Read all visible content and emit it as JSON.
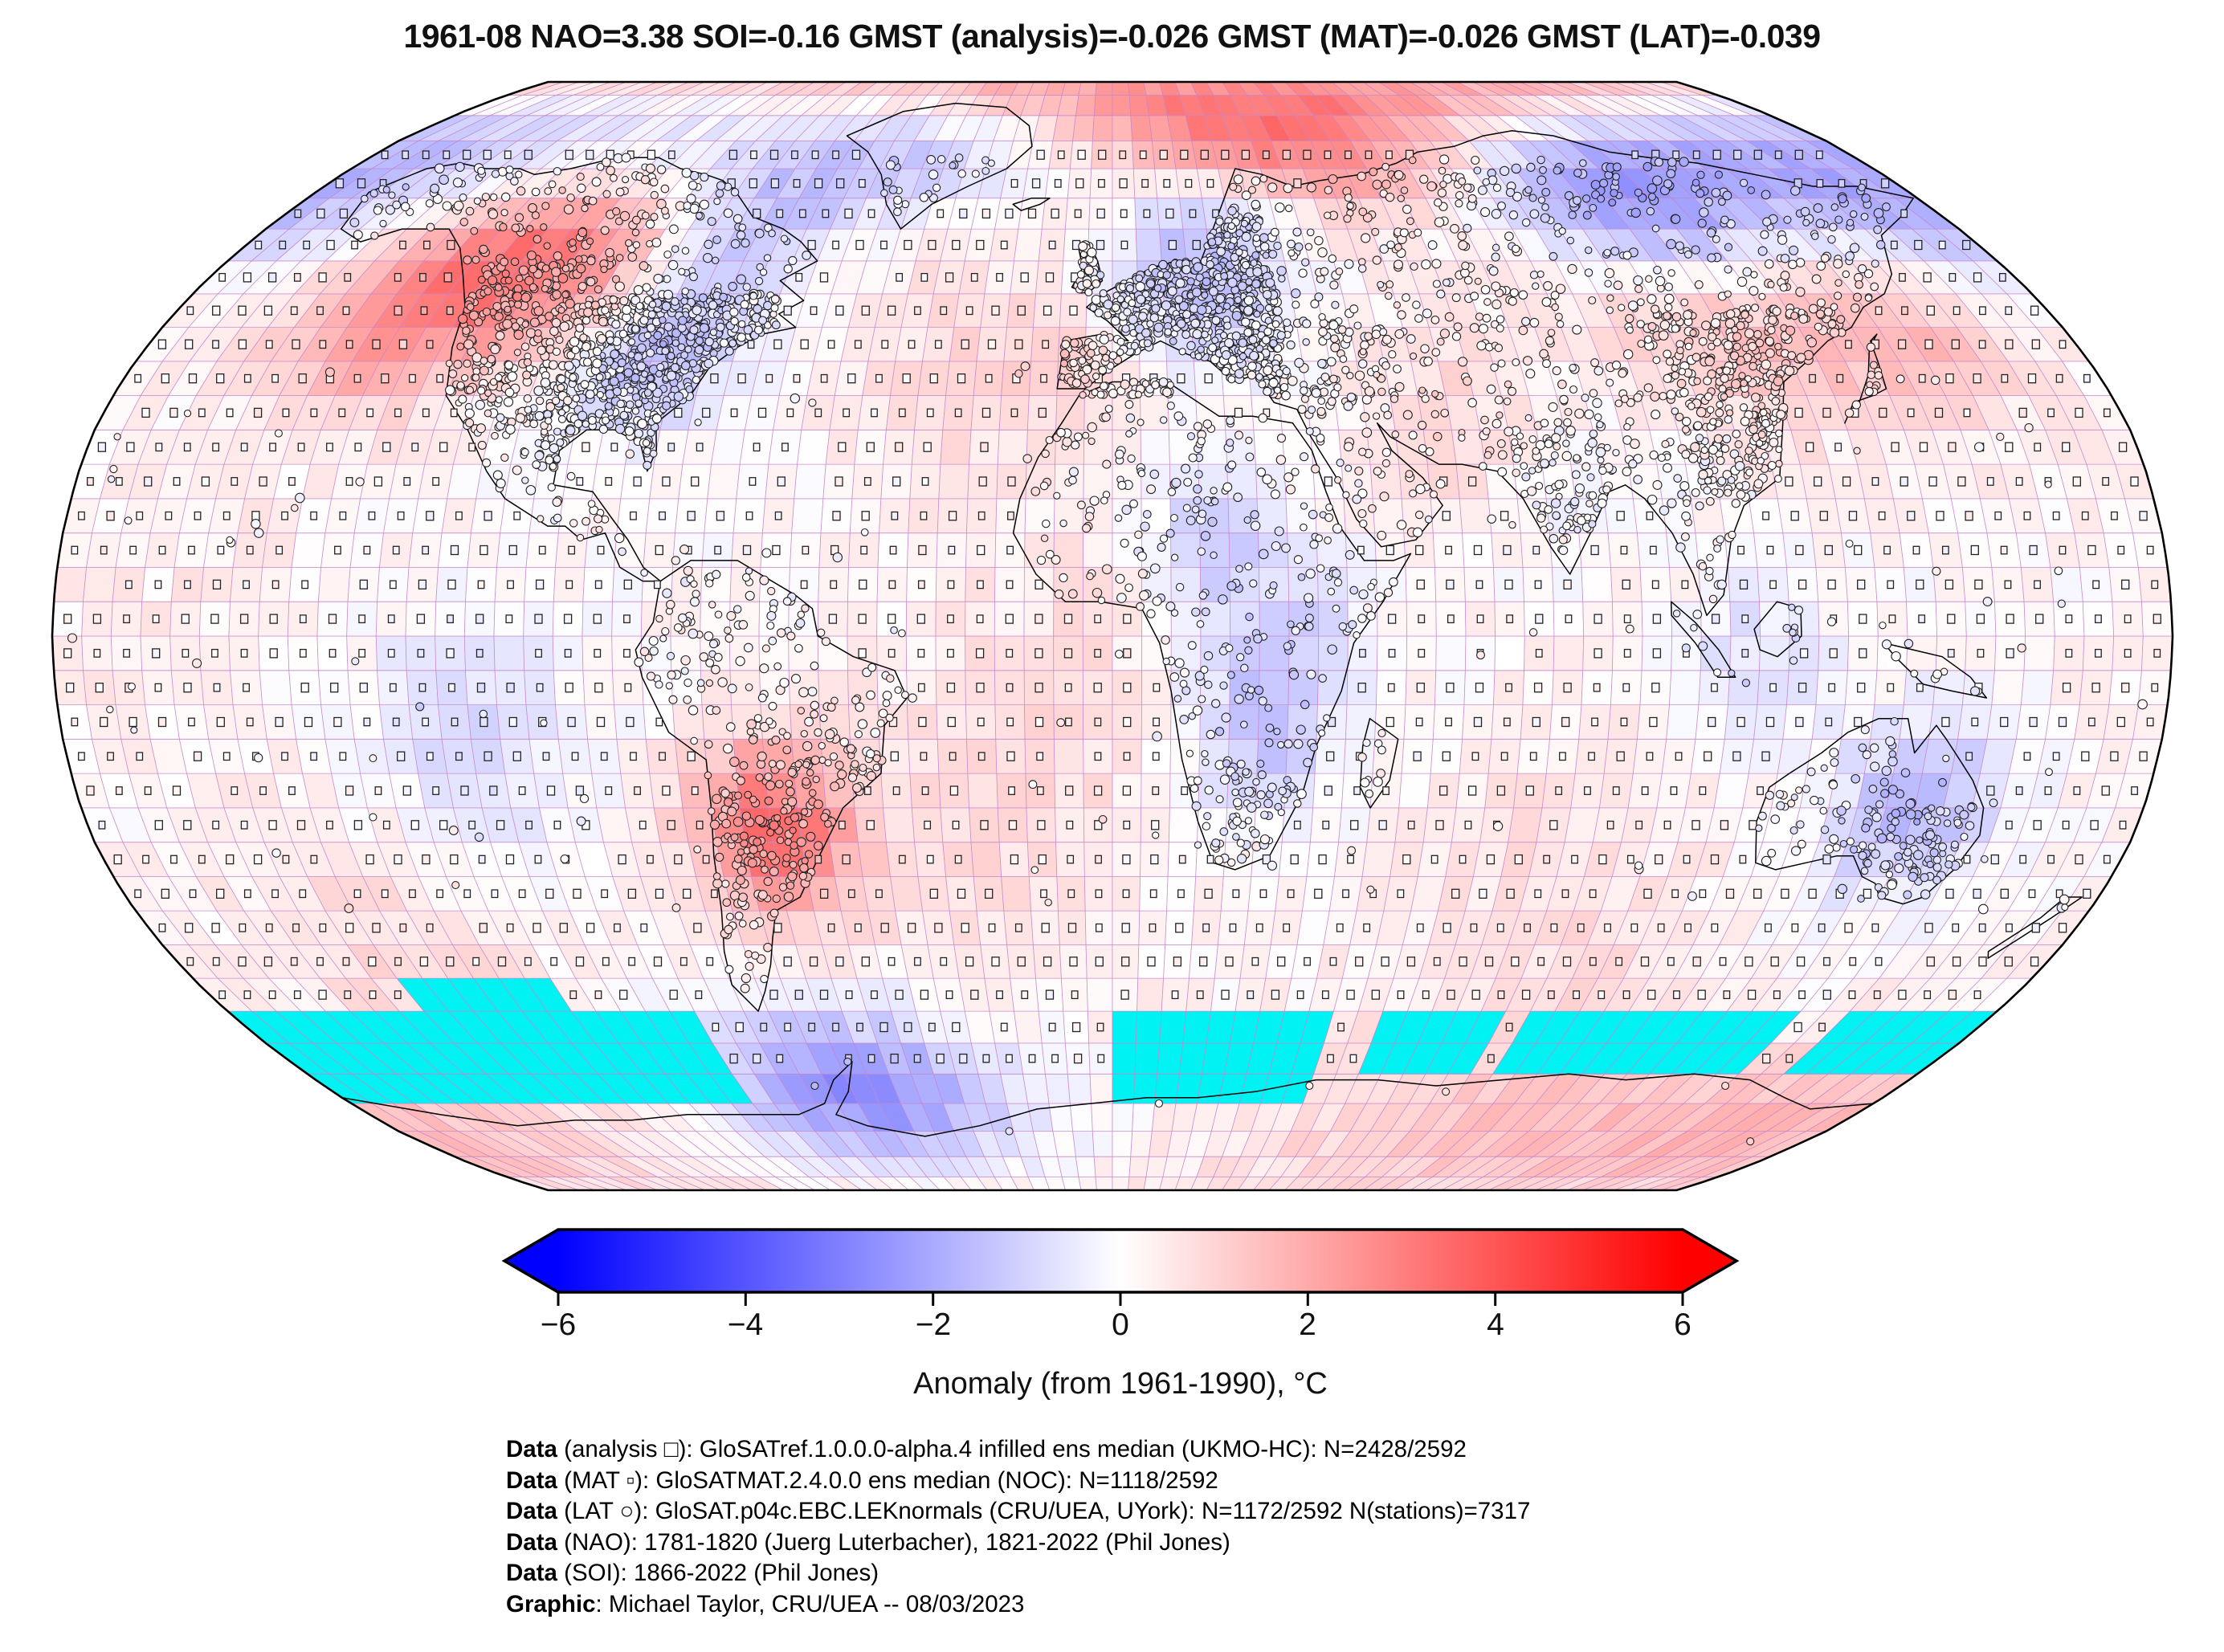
{
  "title": "1961-08 NAO=3.38 SOI=-0.16 GMST (analysis)=-0.026 GMST (MAT)=-0.026 GMST (LAT)=-0.039",
  "header_values": {
    "period": "1961-08",
    "NAO": 3.38,
    "SOI": -0.16,
    "GMST_analysis": -0.026,
    "GMST_MAT": -0.026,
    "GMST_LAT": -0.039
  },
  "colorbar": {
    "label": "Anomaly (from 1961-1990), °C",
    "ticks": [
      "−6",
      "−4",
      "−2",
      "0",
      "2",
      "4",
      "6"
    ],
    "min": -6,
    "max": 6,
    "colors": {
      "negative_end": "#0000ff",
      "zero": "#ffffff",
      "positive_end": "#ff0000"
    }
  },
  "footer": {
    "lines": [
      {
        "prefix": "Data",
        "text": " (analysis □): GloSATref.1.0.0.0-alpha.4 infilled ens median (UKMO-HC): N=2428/2592"
      },
      {
        "prefix": "Data",
        "text": " (MAT ▫): GloSATMAT.2.4.0.0 ens median (NOC): N=1118/2592"
      },
      {
        "prefix": "Data",
        "text": " (LAT ○): GloSAT.p04c.EBC.LEKnormals (CRU/UEA, UYork): N=1172/2592 N(stations)=7317"
      },
      {
        "prefix": "Data",
        "text": " (NAO): 1781-1820 (Juerg Luterbacher), 1821-2022 (Phil Jones)"
      },
      {
        "prefix": "Data",
        "text": " (SOI): 1866-2022 (Phil Jones)"
      },
      {
        "prefix": "Graphic",
        "text": ": Michael Taylor, CRU/UEA -- 08/03/2023"
      }
    ]
  },
  "chart_data": {
    "type": "heatmap",
    "title": "1961-08 NAO=3.38 SOI=-0.16 GMST (analysis)=-0.026 GMST (MAT)=-0.026 GMST (LAT)=-0.039",
    "projection": "Robinson",
    "grid_resolution_deg": 5,
    "colorbar": {
      "label": "Anomaly (from 1961-1990), °C",
      "min": -6,
      "max": 6,
      "ticks": [
        -6,
        -4,
        -2,
        0,
        2,
        4,
        6
      ],
      "colormap": [
        "#0000ff",
        "#ffffff",
        "#ff0000"
      ]
    },
    "legend_markers": [
      {
        "symbol": "□",
        "dataset": "analysis",
        "n": "2428/2592"
      },
      {
        "symbol": "▫",
        "dataset": "MAT",
        "n": "1118/2592"
      },
      {
        "symbol": "○",
        "dataset": "LAT",
        "n": "1172/2592",
        "stations": 7317
      }
    ],
    "missing_data_color": "#00f2f2",
    "gridline_color": "#c487cb",
    "coastline_color": "#000000",
    "anomaly_blobs": [
      [
        -122,
        55,
        2.9,
        11
      ],
      [
        -140,
        44,
        1.5,
        9
      ],
      [
        -100,
        51,
        1.2,
        8
      ],
      [
        -85,
        42,
        -2.0,
        8
      ],
      [
        -85,
        58,
        -1.0,
        7
      ],
      [
        -70,
        69,
        -1.2,
        9
      ],
      [
        -150,
        71,
        -1.3,
        9
      ],
      [
        -40,
        77,
        -1.0,
        9
      ],
      [
        -25,
        40,
        0.8,
        14
      ],
      [
        -8,
        40,
        1.0,
        5
      ],
      [
        15,
        50,
        -1.4,
        9
      ],
      [
        25,
        62,
        -1.1,
        7
      ],
      [
        55,
        75,
        2.8,
        10
      ],
      [
        20,
        85,
        1.8,
        10
      ],
      [
        110,
        67,
        -3.0,
        11
      ],
      [
        168,
        64,
        -1.8,
        9
      ],
      [
        150,
        45,
        1.6,
        10
      ],
      [
        120,
        42,
        1.5,
        9
      ],
      [
        95,
        50,
        0.9,
        9
      ],
      [
        60,
        32,
        0.9,
        10
      ],
      [
        17,
        13,
        -1.5,
        8
      ],
      [
        25,
        -13,
        -1.7,
        9
      ],
      [
        33,
        3,
        -0.8,
        7
      ],
      [
        75,
        22,
        -0.4,
        8
      ],
      [
        110,
        -4,
        -0.9,
        8
      ],
      [
        140,
        -25,
        -1.9,
        9
      ],
      [
        -60,
        -28,
        3.4,
        9
      ],
      [
        -110,
        -15,
        -1.1,
        12
      ],
      [
        -20,
        -25,
        0.7,
        18
      ],
      [
        80,
        -35,
        0.6,
        16
      ],
      [
        -135,
        -45,
        0.7,
        14
      ],
      [
        -58,
        -68,
        -2.7,
        9
      ],
      [
        95,
        -72,
        1.1,
        14
      ],
      [
        160,
        -74,
        0.9,
        10
      ],
      [
        -150,
        -73,
        0.6,
        10
      ],
      [
        0,
        3,
        0.4,
        15
      ],
      [
        -160,
        5,
        0.3,
        20
      ]
    ],
    "missing_data_boxes": [
      [
        -180,
        -85,
        -70,
        -55
      ],
      [
        -140,
        -110,
        -55,
        -50
      ],
      [
        0,
        45,
        -70,
        -55
      ],
      [
        55,
        80,
        -65,
        -55
      ],
      [
        85,
        140,
        -63,
        -55
      ],
      [
        150,
        178,
        -65,
        -57
      ]
    ]
  }
}
